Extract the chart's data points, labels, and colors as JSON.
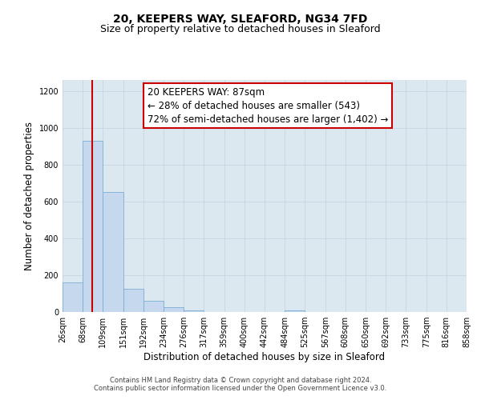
{
  "title_line1": "20, KEEPERS WAY, SLEAFORD, NG34 7FD",
  "title_line2": "Size of property relative to detached houses in Sleaford",
  "xlabel": "Distribution of detached houses by size in Sleaford",
  "ylabel": "Number of detached properties",
  "bar_edges": [
    26,
    68,
    109,
    151,
    192,
    234,
    276,
    317,
    359,
    400,
    442,
    484,
    525,
    567,
    608,
    650,
    692,
    733,
    775,
    816,
    858
  ],
  "bar_heights": [
    160,
    930,
    650,
    125,
    62,
    28,
    8,
    0,
    0,
    0,
    0,
    10,
    0,
    0,
    0,
    0,
    0,
    0,
    0,
    0
  ],
  "bar_color": "#c5d8ed",
  "bar_edge_color": "#7aafd4",
  "property_size": 87,
  "property_line_color": "#cc0000",
  "annotation_line1": "20 KEEPERS WAY: 87sqm",
  "annotation_line2": "← 28% of detached houses are smaller (543)",
  "annotation_line3": "72% of semi-detached houses are larger (1,402) →",
  "annotation_box_color": "#ffffff",
  "annotation_box_edge_color": "#cc0000",
  "ylim": [
    0,
    1260
  ],
  "yticks": [
    0,
    200,
    400,
    600,
    800,
    1000,
    1200
  ],
  "tick_labels": [
    "26sqm",
    "68sqm",
    "109sqm",
    "151sqm",
    "192sqm",
    "234sqm",
    "276sqm",
    "317sqm",
    "359sqm",
    "400sqm",
    "442sqm",
    "484sqm",
    "525sqm",
    "567sqm",
    "608sqm",
    "650sqm",
    "692sqm",
    "733sqm",
    "775sqm",
    "816sqm",
    "858sqm"
  ],
  "footer_line1": "Contains HM Land Registry data © Crown copyright and database right 2024.",
  "footer_line2": "Contains public sector information licensed under the Open Government Licence v3.0.",
  "background_color": "#ffffff",
  "grid_color": "#c8d4e0",
  "plot_bg_color": "#dce8f0",
  "title_fontsize": 10,
  "subtitle_fontsize": 9,
  "axis_label_fontsize": 8.5,
  "tick_fontsize": 7,
  "annotation_fontsize": 8.5,
  "footer_fontsize": 6
}
